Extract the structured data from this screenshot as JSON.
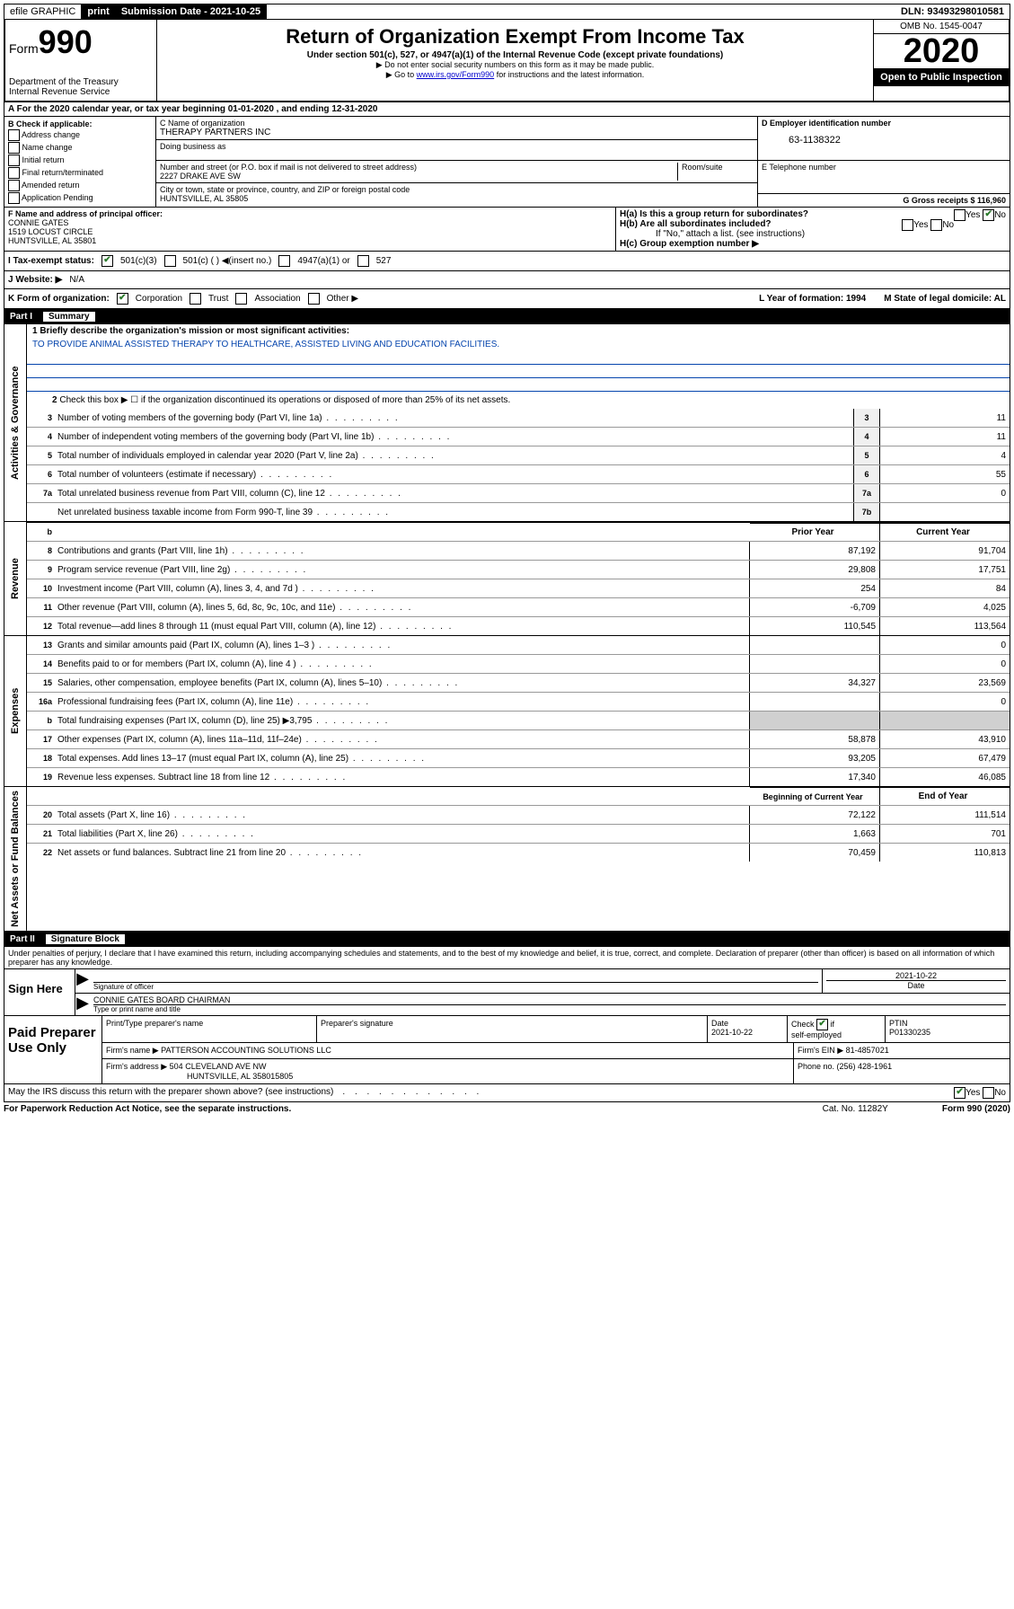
{
  "topbar": {
    "efile": "efile GRAPHIC",
    "print": "print",
    "submission_label": "Submission Date - 2021-10-25",
    "dln": "DLN: 93493298010581"
  },
  "header": {
    "form_prefix": "Form",
    "form_num": "990",
    "dept": "Department of the Treasury\nInternal Revenue Service",
    "title": "Return of Organization Exempt From Income Tax",
    "subtitle": "Under section 501(c), 527, or 4947(a)(1) of the Internal Revenue Code (except private foundations)",
    "note1": "▶ Do not enter social security numbers on this form as it may be made public.",
    "note2": "▶ Go to www.irs.gov/Form990 for instructions and the latest information.",
    "omb": "OMB No. 1545-0047",
    "year": "2020",
    "open_public": "Open to Public Inspection"
  },
  "sectionA": "A   For the 2020 calendar year, or tax year beginning 01-01-2020    , and ending 12-31-2020",
  "colB": {
    "title": "B Check if applicable:",
    "items": [
      "Address change",
      "Name change",
      "Initial return",
      "Final return/terminated",
      "Amended return",
      "Application Pending"
    ]
  },
  "colC": {
    "c_label": "C Name of organization",
    "org": "THERAPY PARTNERS INC",
    "dba_label": "Doing business as",
    "addr_label": "Number and street (or P.O. box if mail is not delivered to street address)",
    "room_label": "Room/suite",
    "addr": "2227 DRAKE AVE SW",
    "city_label": "City or town, state or province, country, and ZIP or foreign postal code",
    "city": "HUNTSVILLE, AL  35805"
  },
  "colD": {
    "label": "D Employer identification number",
    "ein": "63-1138322",
    "e_label": "E Telephone number",
    "g_label": "G Gross receipts $ 116,960"
  },
  "rowF": {
    "f_label": "F  Name and address of principal officer:",
    "name": "CONNIE GATES",
    "addr1": "1519 LOCUST CIRCLE",
    "addr2": "HUNTSVILLE, AL  35801"
  },
  "rowH": {
    "ha": "H(a)  Is this a group return for subordinates?",
    "hb": "H(b)  Are all subordinates included?",
    "hb_note": "If \"No,\" attach a list. (see instructions)",
    "hc": "H(c)  Group exemption number ▶"
  },
  "rowI": {
    "label": "I    Tax-exempt status:",
    "c3": "501(c)(3)",
    "c": "501(c) (  ) ◀(insert no.)",
    "a1": "4947(a)(1) or",
    "s527": "527"
  },
  "rowJ": {
    "label": "J   Website: ▶",
    "val": "N/A"
  },
  "rowK": {
    "label": "K Form of organization:",
    "corp": "Corporation",
    "trust": "Trust",
    "assoc": "Association",
    "other": "Other ▶",
    "l_label": "L Year of formation: 1994",
    "m_label": "M State of legal domicile: AL"
  },
  "part1": {
    "header": "Part I",
    "title": "Summary",
    "q1_label": "1  Briefly describe the organization's mission or most significant activities:",
    "q1_text": "TO PROVIDE ANIMAL ASSISTED THERAPY TO HEALTHCARE, ASSISTED LIVING AND EDUCATION FACILITIES.",
    "q2": "Check this box ▶ ☐  if the organization discontinued its operations or disposed of more than 25% of its net assets."
  },
  "sidebars": {
    "gov": "Activities & Governance",
    "rev": "Revenue",
    "exp": "Expenses",
    "net": "Net Assets or Fund Balances"
  },
  "gov_lines": [
    {
      "n": "3",
      "label": "Number of voting members of the governing body (Part VI, line 1a)",
      "box": "3",
      "v": "11"
    },
    {
      "n": "4",
      "label": "Number of independent voting members of the governing body (Part VI, line 1b)",
      "box": "4",
      "v": "11"
    },
    {
      "n": "5",
      "label": "Total number of individuals employed in calendar year 2020 (Part V, line 2a)",
      "box": "5",
      "v": "4"
    },
    {
      "n": "6",
      "label": "Total number of volunteers (estimate if necessary)",
      "box": "6",
      "v": "55"
    },
    {
      "n": "7a",
      "label": "Total unrelated business revenue from Part VIII, column (C), line 12",
      "box": "7a",
      "v": "0"
    },
    {
      "n": "",
      "label": "Net unrelated business taxable income from Form 990-T, line 39",
      "box": "7b",
      "v": ""
    }
  ],
  "col_headers": {
    "prior": "Prior Year",
    "current": "Current Year"
  },
  "rev_lines": [
    {
      "n": "8",
      "label": "Contributions and grants (Part VIII, line 1h)",
      "p": "87,192",
      "c": "91,704"
    },
    {
      "n": "9",
      "label": "Program service revenue (Part VIII, line 2g)",
      "p": "29,808",
      "c": "17,751"
    },
    {
      "n": "10",
      "label": "Investment income (Part VIII, column (A), lines 3, 4, and 7d )",
      "p": "254",
      "c": "84"
    },
    {
      "n": "11",
      "label": "Other revenue (Part VIII, column (A), lines 5, 6d, 8c, 9c, 10c, and 11e)",
      "p": "-6,709",
      "c": "4,025"
    },
    {
      "n": "12",
      "label": "Total revenue—add lines 8 through 11 (must equal Part VIII, column (A), line 12)",
      "p": "110,545",
      "c": "113,564"
    }
  ],
  "exp_lines": [
    {
      "n": "13",
      "label": "Grants and similar amounts paid (Part IX, column (A), lines 1–3 )",
      "p": "",
      "c": "0"
    },
    {
      "n": "14",
      "label": "Benefits paid to or for members (Part IX, column (A), line 4 )",
      "p": "",
      "c": "0"
    },
    {
      "n": "15",
      "label": "Salaries, other compensation, employee benefits (Part IX, column (A), lines 5–10)",
      "p": "34,327",
      "c": "23,569"
    },
    {
      "n": "16a",
      "label": "Professional fundraising fees (Part IX, column (A), line 11e)",
      "p": "",
      "c": "0"
    },
    {
      "n": "b",
      "label": "Total fundraising expenses (Part IX, column (D), line 25) ▶3,795",
      "p": "grey",
      "c": "grey"
    },
    {
      "n": "17",
      "label": "Other expenses (Part IX, column (A), lines 11a–11d, 11f–24e)",
      "p": "58,878",
      "c": "43,910"
    },
    {
      "n": "18",
      "label": "Total expenses. Add lines 13–17 (must equal Part IX, column (A), line 25)",
      "p": "93,205",
      "c": "67,479"
    },
    {
      "n": "19",
      "label": "Revenue less expenses. Subtract line 18 from line 12",
      "p": "17,340",
      "c": "46,085"
    }
  ],
  "net_headers": {
    "begin": "Beginning of Current Year",
    "end": "End of Year"
  },
  "net_lines": [
    {
      "n": "20",
      "label": "Total assets (Part X, line 16)",
      "p": "72,122",
      "c": "111,514"
    },
    {
      "n": "21",
      "label": "Total liabilities (Part X, line 26)",
      "p": "1,663",
      "c": "701"
    },
    {
      "n": "22",
      "label": "Net assets or fund balances. Subtract line 21 from line 20",
      "p": "70,459",
      "c": "110,813"
    }
  ],
  "part2": {
    "header": "Part II",
    "title": "Signature Block",
    "penalty": "Under penalties of perjury, I declare that I have examined this return, including accompanying schedules and statements, and to the best of my knowledge and belief, it is true, correct, and complete. Declaration of preparer (other than officer) is based on all information of which preparer has any knowledge."
  },
  "sign": {
    "label": "Sign Here",
    "sig_label": "Signature of officer",
    "date": "2021-10-22",
    "date_label": "Date",
    "name": "CONNIE GATES  BOARD CHAIRMAN",
    "name_label": "Type or print name and title"
  },
  "preparer": {
    "label": "Paid Preparer Use Only",
    "print_label": "Print/Type preparer's name",
    "sig_label": "Preparer's signature",
    "date_label": "Date",
    "date": "2021-10-22",
    "check_label": "Check ☑ if self-employed",
    "ptin_label": "PTIN",
    "ptin": "P01330235",
    "firm_name_label": "Firm's name    ▶",
    "firm_name": "PATTERSON ACCOUNTING SOLUTIONS LLC",
    "firm_ein_label": "Firm's EIN ▶",
    "firm_ein": "81-4857021",
    "firm_addr_label": "Firm's address ▶",
    "firm_addr": "504 CLEVELAND AVE NW",
    "firm_city": "HUNTSVILLE, AL  358015805",
    "phone_label": "Phone no. (256) 428-1961"
  },
  "footer": {
    "discuss": "May the IRS discuss this return with the preparer shown above? (see instructions)",
    "paperwork": "For Paperwork Reduction Act Notice, see the separate instructions.",
    "cat": "Cat. No. 11282Y",
    "form": "Form 990 (2020)"
  }
}
